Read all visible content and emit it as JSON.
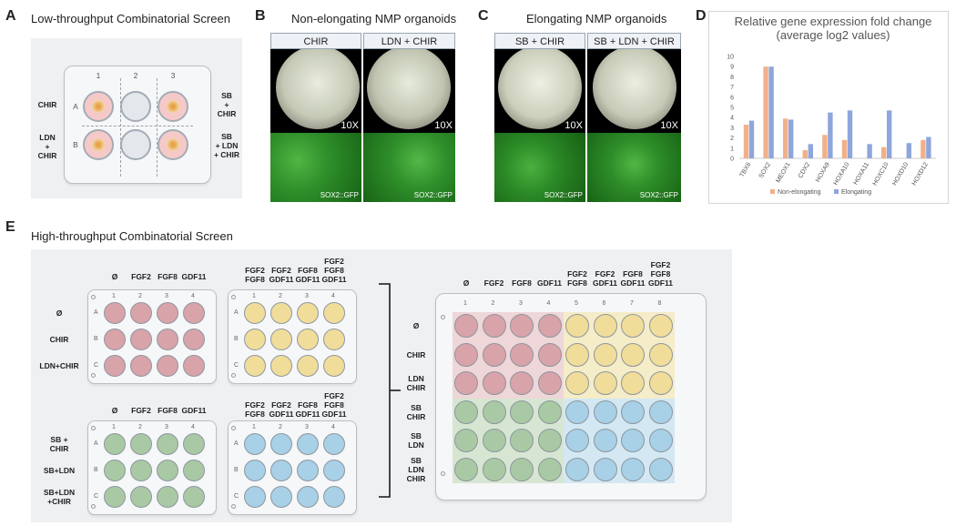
{
  "panelA": {
    "letter": "A",
    "title": "Low-throughput Combinatorial Screen",
    "cols": [
      "1",
      "2",
      "3"
    ],
    "rows": [
      "A",
      "B"
    ],
    "left_labels": [
      "CHIR",
      "LDN\n+\nCHIR"
    ],
    "right_labels": [
      "SB\n+\nCHIR",
      "SB\n+ LDN\n+ CHIR"
    ]
  },
  "panelB": {
    "letter": "B",
    "title": "Non-elongating NMP organoids",
    "conditions": [
      "CHIR",
      "LDN + CHIR"
    ],
    "mag": "10X",
    "gfp": "SOX2::GFP"
  },
  "panelC": {
    "letter": "C",
    "title": "Elongating NMP organoids",
    "conditions": [
      "SB + CHIR",
      "SB + LDN + CHIR"
    ],
    "mag": "10X",
    "gfp": "SOX2::GFP"
  },
  "panelD": {
    "letter": "D"
  },
  "chart_data": {
    "type": "bar",
    "title": "Relative gene expression fold change (average log2 values)",
    "categories": [
      "TBX6",
      "SOX2",
      "MEOX1",
      "CDX2",
      "HOXA9",
      "HOXA10",
      "HOXA11",
      "HOXC10",
      "HOXD10",
      "HOXD12"
    ],
    "series": [
      {
        "name": "Non-elongating",
        "color": "#f2b089",
        "values": [
          3.3,
          9.0,
          3.9,
          0.8,
          2.3,
          1.8,
          0.0,
          1.1,
          0.0,
          1.8
        ]
      },
      {
        "name": "Elongating",
        "color": "#8ea6dc",
        "values": [
          3.7,
          9.0,
          3.8,
          1.4,
          4.5,
          4.7,
          1.4,
          4.7,
          1.5,
          2.1
        ]
      }
    ],
    "ylim": [
      0,
      10
    ],
    "yticks": [
      "0",
      "1",
      "2",
      "3",
      "4",
      "5",
      "6",
      "7",
      "8",
      "9",
      "10"
    ],
    "legend_position": "bottom",
    "grid": false
  },
  "panelE": {
    "letter": "E",
    "title": "High-throughput Combinatorial Screen",
    "plate_cols": [
      "1",
      "2",
      "3",
      "4"
    ],
    "plate_rows": [
      "A",
      "B",
      "C"
    ],
    "top_col_labels_1": [
      "Ø",
      "FGF2",
      "FGF8",
      "GDF11"
    ],
    "top_col_labels_2": [
      "FGF2\nFGF8",
      "FGF2\nGDF11",
      "FGF8\nGDF11",
      "FGF2\nFGF8\nGDF11"
    ],
    "row_labels_top": [
      "Ø",
      "CHIR",
      "LDN+CHIR"
    ],
    "row_labels_bottom": [
      "SB +\nCHIR",
      "SB+LDN",
      "SB+LDN\n+CHIR"
    ],
    "big_cols": [
      "1",
      "2",
      "3",
      "4",
      "5",
      "6",
      "7",
      "8"
    ],
    "big_rows": [
      "A",
      "B",
      "C",
      "D",
      "E",
      "F"
    ],
    "big_col_labels": [
      "Ø",
      "FGF2",
      "FGF8",
      "GDF11",
      "FGF2\nFGF8",
      "FGF2\nGDF11",
      "FGF8\nGDF11",
      "FGF2\nFGF8\nGDF11"
    ],
    "big_row_labels": [
      "Ø",
      "CHIR",
      "LDN\nCHIR",
      "SB\nCHIR",
      "SB\nLDN",
      "SB\nLDN\nCHIR"
    ]
  },
  "colors": {
    "pink": "#d9a3aa",
    "yellow": "#f1dd9a",
    "green": "#a9c9a4",
    "blue": "#a8d0e6",
    "gfp": "#2f8f2a"
  }
}
